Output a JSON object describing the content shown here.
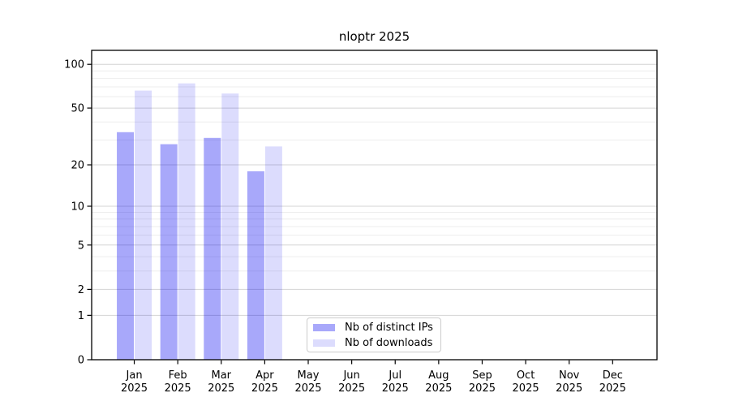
{
  "title": "nloptr 2025",
  "chart_data": {
    "type": "bar",
    "title": "nloptr 2025",
    "categories": [
      "Jan",
      "Feb",
      "Mar",
      "Apr",
      "May",
      "Jun",
      "Jul",
      "Aug",
      "Sep",
      "Oct",
      "Nov",
      "Dec"
    ],
    "x_year_label": "2025",
    "series": [
      {
        "name": "Nb of distinct IPs",
        "color": "#0000F057",
        "values": [
          34,
          28,
          31,
          18,
          0,
          0,
          0,
          0,
          0,
          0,
          0,
          0
        ]
      },
      {
        "name": "Nb of downloads",
        "color": "#0000F023",
        "values": [
          66,
          74,
          63,
          27,
          0,
          0,
          0,
          0,
          0,
          0,
          0,
          0
        ]
      }
    ],
    "y_scale": "log10(value+1)",
    "y_ticks": [
      0,
      1,
      2,
      5,
      10,
      20,
      50,
      100
    ],
    "y_minor_gridlines": [
      3,
      4,
      6,
      7,
      8,
      9,
      30,
      40,
      60,
      70,
      80,
      90
    ],
    "ylim": [
      0,
      125
    ],
    "grid": true,
    "legend_position": "lower center",
    "colors": {
      "major_grid": "#d4d4d4",
      "minor_grid": "#ededed",
      "axis": "#000000",
      "tick_text": "#000000",
      "background": "#ffffff"
    }
  }
}
